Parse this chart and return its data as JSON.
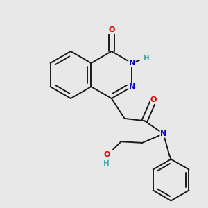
{
  "background_color": "#e8e8e8",
  "bond_color": "#1a1a1a",
  "atom_colors": {
    "O": "#dd0000",
    "N": "#0000cc",
    "H": "#4da6a6",
    "C": "#1a1a1a"
  },
  "bond_width": 1.4,
  "font_size": 8.0,
  "figsize": [
    3.0,
    3.0
  ],
  "dpi": 100
}
